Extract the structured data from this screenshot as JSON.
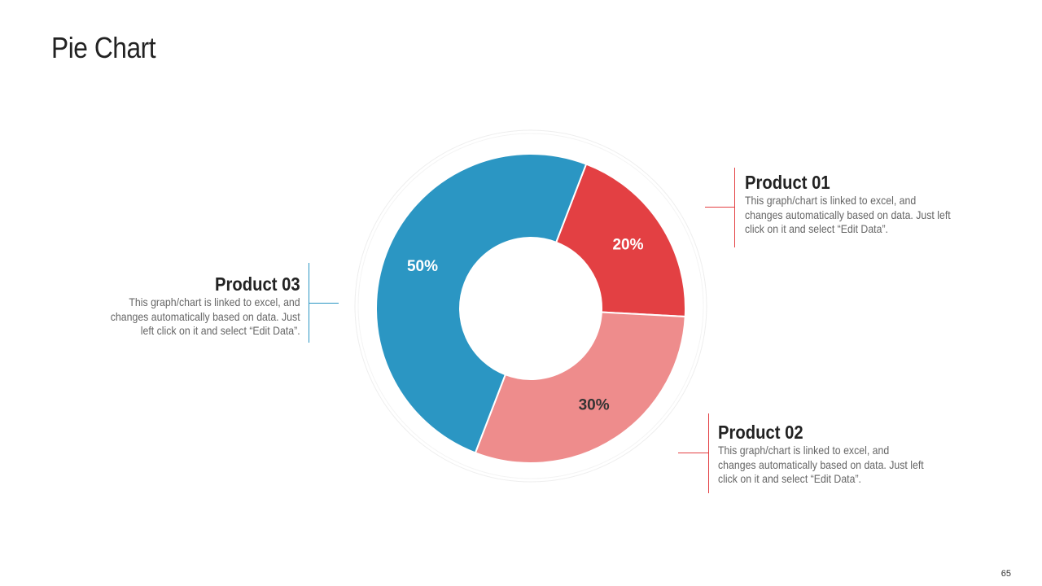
{
  "slide": {
    "title": "Pie Chart",
    "page_number": "65"
  },
  "colors": {
    "product_01": "#e34043",
    "product_02": "#ee8c8c",
    "product_03": "#2b96c3"
  },
  "callouts": {
    "product_01": {
      "heading": "Product 01",
      "lines": [
        "This graph/chart is linked to excel, and",
        "changes automatically based on data. Just left",
        "click on it and select “Edit Data”."
      ]
    },
    "product_02": {
      "heading": "Product 02",
      "lines": [
        "This graph/chart is linked to excel, and",
        "changes automatically based on data. Just left",
        "click on it and select “Edit Data”."
      ]
    },
    "product_03": {
      "heading": "Product 03",
      "lines": [
        "This graph/chart is linked to excel, and",
        "changes automatically based on data. Just",
        "left click on it and select “Edit Data”."
      ]
    }
  },
  "chart_data": {
    "type": "pie",
    "style": "donut",
    "slices": [
      {
        "label": "20%",
        "value": 20,
        "color": "#e34043"
      },
      {
        "label": "30%",
        "value": 30,
        "color": "#ee8c8c"
      },
      {
        "label": "50%",
        "value": 50,
        "color": "#2b96c3"
      }
    ]
  }
}
